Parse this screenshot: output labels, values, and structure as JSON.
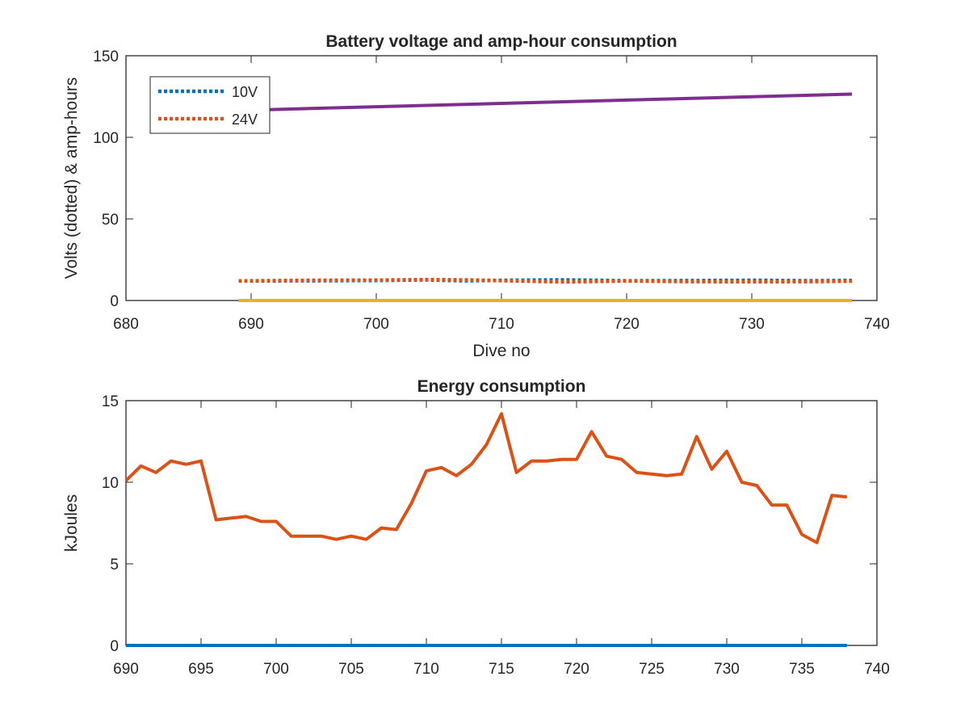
{
  "chart_data": [
    {
      "type": "line",
      "title": "Battery voltage and amp-hour consumption",
      "xlabel": "Dive no",
      "ylabel": "Volts (dotted) & amp-hours",
      "xlim": [
        680,
        740
      ],
      "ylim": [
        0,
        150
      ],
      "xticks": [
        "680",
        "690",
        "700",
        "710",
        "720",
        "730",
        "740"
      ],
      "yticks": [
        "0",
        "50",
        "100",
        "150"
      ],
      "legend_position": "top-left",
      "grid": false,
      "series": [
        {
          "name": "10V",
          "style": "dotted",
          "color": "#0072BD",
          "x": [
            689,
            695,
            700,
            704,
            707,
            710,
            715,
            720,
            725,
            730,
            735,
            738
          ],
          "y": [
            12.0,
            12.1,
            12.3,
            12.6,
            12.1,
            12.4,
            12.6,
            12.1,
            12.2,
            12.4,
            12.1,
            12.3
          ]
        },
        {
          "name": "24V",
          "style": "dotted",
          "color": "#D95319",
          "x": [
            689,
            695,
            700,
            704,
            707,
            710,
            715,
            720,
            725,
            730,
            735,
            738
          ],
          "y": [
            12.0,
            12.4,
            12.5,
            12.8,
            12.6,
            12.2,
            11.4,
            12.0,
            11.6,
            11.5,
            11.6,
            11.9
          ]
        },
        {
          "style": "solid",
          "color": "#7E2F8E",
          "x": [
            689,
            738
          ],
          "y": [
            116.5,
            126.5
          ]
        },
        {
          "style": "solid",
          "color": "#EDB120",
          "x": [
            689,
            738
          ],
          "y": [
            0,
            0
          ]
        }
      ]
    },
    {
      "type": "line",
      "title": "Energy consumption",
      "xlabel": "",
      "ylabel": "kJoules",
      "xlim": [
        690,
        740
      ],
      "ylim": [
        0,
        15
      ],
      "xticks": [
        "690",
        "695",
        "700",
        "705",
        "710",
        "715",
        "720",
        "725",
        "730",
        "735",
        "740"
      ],
      "yticks": [
        "0",
        "5",
        "10",
        "15"
      ],
      "grid": false,
      "series": [
        {
          "style": "solid",
          "color": "#0072BD",
          "x": [
            690,
            738
          ],
          "y": [
            0,
            0
          ]
        },
        {
          "style": "solid",
          "color": "#D95319",
          "x": [
            690,
            691,
            692,
            693,
            694,
            695,
            696,
            697,
            698,
            699,
            700,
            701,
            702,
            703,
            704,
            705,
            706,
            707,
            708,
            709,
            710,
            711,
            712,
            713,
            714,
            715,
            716,
            717,
            718,
            719,
            720,
            721,
            722,
            723,
            724,
            725,
            726,
            727,
            728,
            729,
            730,
            731,
            732,
            733,
            734,
            735,
            736,
            737,
            738
          ],
          "y": [
            10.1,
            11.0,
            10.6,
            11.3,
            11.1,
            11.3,
            7.7,
            7.8,
            7.9,
            7.6,
            7.6,
            6.7,
            6.7,
            6.7,
            6.5,
            6.7,
            6.5,
            7.2,
            7.1,
            8.7,
            10.7,
            10.9,
            10.4,
            11.1,
            12.3,
            14.2,
            10.6,
            11.3,
            11.3,
            11.4,
            11.4,
            13.1,
            11.6,
            11.4,
            10.6,
            10.5,
            10.4,
            10.5,
            12.8,
            10.8,
            11.9,
            10.0,
            9.8,
            8.6,
            8.6,
            6.8,
            6.3,
            9.2,
            9.1
          ]
        }
      ]
    }
  ]
}
